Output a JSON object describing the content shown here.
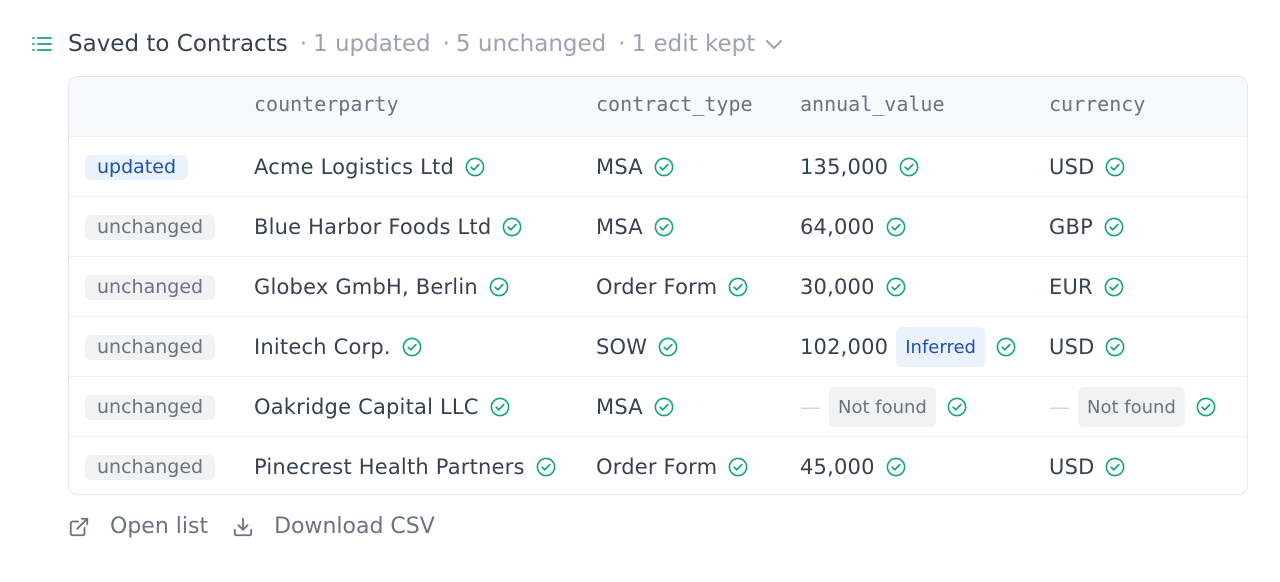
{
  "header": {
    "icon": "list-icon",
    "title": "Saved to Contracts",
    "updated": "1 updated",
    "unchanged": "5 unchanged",
    "edits": "1 edit kept",
    "dot": "·"
  },
  "columns": [
    "counterparty",
    "contract_type",
    "annual_value",
    "currency"
  ],
  "rows": [
    {
      "status": "updated",
      "counterparty": "Acme Logistics Ltd",
      "contract_type": "MSA",
      "annual_value": "135,000",
      "currency": "USD"
    },
    {
      "status": "unchanged",
      "counterparty": "Blue Harbor Foods Ltd",
      "contract_type": "MSA",
      "annual_value": "64,000",
      "currency": "GBP"
    },
    {
      "status": "unchanged",
      "counterparty": "Globex GmbH, Berlin",
      "contract_type": "Order Form",
      "annual_value": "30,000",
      "currency": "EUR"
    },
    {
      "status": "unchanged",
      "counterparty": "Initech Corp.",
      "contract_type": "SOW",
      "annual_value": "102,000",
      "annual_value_tag": "Inferred",
      "currency": "USD"
    },
    {
      "status": "unchanged",
      "counterparty": "Oakridge Capital LLC",
      "contract_type": "MSA",
      "annual_value": "—",
      "annual_value_tag": "Not found",
      "currency": "—",
      "currency_tag": "Not found"
    },
    {
      "status": "unchanged",
      "counterparty": "Pinecrest Health Partners",
      "contract_type": "Order Form",
      "annual_value": "45,000",
      "currency": "USD"
    }
  ],
  "footer": {
    "open_list": "Open list",
    "download": "Download CSV"
  },
  "colors": {
    "check": "#10a37f",
    "updated_bg": "#eaf2fd",
    "updated_fg": "#1d4fb0",
    "neutral_bg": "#f1f2f4"
  }
}
